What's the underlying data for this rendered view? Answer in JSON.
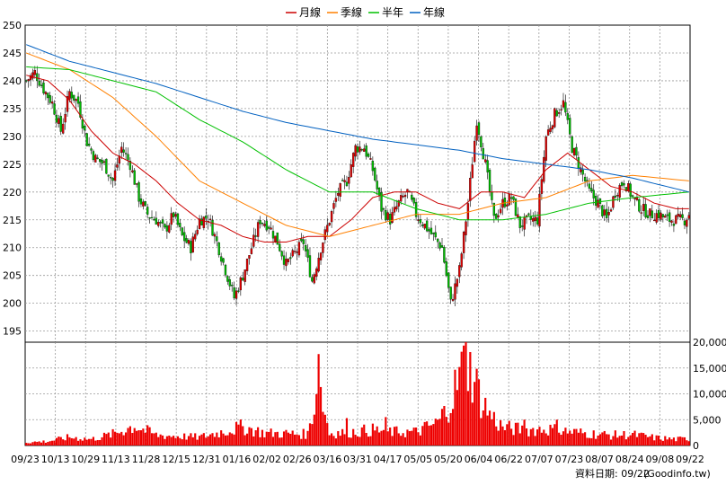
{
  "chart_data": [
    {
      "type": "candlestick",
      "panel": "price",
      "title": "",
      "xlabel": "",
      "ylabel": "",
      "ylim": [
        193,
        250
      ],
      "y_ticks": [
        250,
        245,
        240,
        235,
        230,
        225,
        220,
        215,
        210,
        205,
        200,
        195
      ],
      "x_tick_labels": [
        "09/23",
        "10/13",
        "10/29",
        "11/13",
        "11/28",
        "12/15",
        "12/31",
        "01/16",
        "02/02",
        "02/26",
        "03/16",
        "03/31",
        "04/17",
        "05/05",
        "05/20",
        "06/04",
        "06/22",
        "07/07",
        "07/23",
        "08/07",
        "08/24",
        "09/08",
        "09/22"
      ],
      "grid": true,
      "legend_position": "top-center",
      "legend": [
        {
          "name": "月線",
          "color": "#cc0000"
        },
        {
          "name": "季線",
          "color": "#ff8000"
        },
        {
          "name": "半年",
          "color": "#00c000"
        },
        {
          "name": "年線",
          "color": "#0060c0"
        }
      ],
      "up_color": "#dd0000",
      "down_color": "#00bb00",
      "close_path": [
        [
          0,
          240
        ],
        [
          4,
          241.5
        ],
        [
          8,
          238.5
        ],
        [
          12,
          236
        ],
        [
          16,
          231
        ],
        [
          20,
          238
        ],
        [
          24,
          236
        ],
        [
          28,
          229
        ],
        [
          32,
          226
        ],
        [
          36,
          225
        ],
        [
          40,
          222
        ],
        [
          44,
          228
        ],
        [
          48,
          225
        ],
        [
          52,
          219
        ],
        [
          56,
          216
        ],
        [
          60,
          215
        ],
        [
          64,
          213
        ],
        [
          68,
          216
        ],
        [
          72,
          212
        ],
        [
          76,
          210
        ],
        [
          80,
          215
        ],
        [
          84,
          215.5
        ],
        [
          88,
          211
        ],
        [
          92,
          206
        ],
        [
          96,
          201
        ],
        [
          100,
          205
        ],
        [
          104,
          210
        ],
        [
          108,
          215
        ],
        [
          112,
          214
        ],
        [
          116,
          211
        ],
        [
          120,
          207
        ],
        [
          124,
          209
        ],
        [
          128,
          211
        ],
        [
          132,
          204
        ],
        [
          136,
          210
        ],
        [
          140,
          215
        ],
        [
          144,
          220
        ],
        [
          148,
          222
        ],
        [
          152,
          228
        ],
        [
          156,
          228
        ],
        [
          160,
          224
        ],
        [
          164,
          217
        ],
        [
          168,
          215
        ],
        [
          172,
          218
        ],
        [
          176,
          220
        ],
        [
          180,
          216
        ],
        [
          184,
          214
        ],
        [
          188,
          212
        ],
        [
          192,
          210
        ],
        [
          196,
          200
        ],
        [
          200,
          206
        ],
        [
          204,
          218
        ],
        [
          208,
          233
        ],
        [
          212,
          225
        ],
        [
          216,
          215
        ],
        [
          220,
          218
        ],
        [
          224,
          219
        ],
        [
          228,
          214
        ],
        [
          232,
          215
        ],
        [
          236,
          215
        ],
        [
          240,
          230
        ],
        [
          244,
          234
        ],
        [
          248,
          236
        ],
        [
          252,
          228
        ],
        [
          256,
          224
        ],
        [
          260,
          220
        ],
        [
          264,
          218
        ],
        [
          268,
          215
        ],
        [
          272,
          220
        ],
        [
          276,
          222
        ],
        [
          280,
          219
        ],
        [
          284,
          217
        ],
        [
          288,
          216
        ],
        [
          292,
          216
        ],
        [
          296,
          215
        ],
        [
          300,
          215
        ],
        [
          304,
          215
        ],
        [
          306,
          216
        ]
      ],
      "ma": [
        {
          "name": "月線",
          "values": [
            [
              0,
              241
            ],
            [
              10,
              240
            ],
            [
              20,
              236.5
            ],
            [
              30,
              231
            ],
            [
              40,
              227
            ],
            [
              50,
              225
            ],
            [
              60,
              222
            ],
            [
              70,
              218
            ],
            [
              80,
              215
            ],
            [
              90,
              214
            ],
            [
              100,
              212
            ],
            [
              110,
              211
            ],
            [
              120,
              211
            ],
            [
              130,
              212
            ],
            [
              140,
              212
            ],
            [
              150,
              215
            ],
            [
              160,
              219
            ],
            [
              170,
              220
            ],
            [
              180,
              220
            ],
            [
              190,
              218
            ],
            [
              200,
              217
            ],
            [
              210,
              220
            ],
            [
              220,
              220
            ],
            [
              230,
              219
            ],
            [
              240,
              224
            ],
            [
              250,
              227
            ],
            [
              260,
              224
            ],
            [
              270,
              221
            ],
            [
              280,
              220
            ],
            [
              290,
              218
            ],
            [
              300,
              217
            ],
            [
              306,
              217
            ]
          ]
        },
        {
          "name": "季線",
          "values": [
            [
              0,
              245
            ],
            [
              20,
              242
            ],
            [
              40,
              237
            ],
            [
              60,
              230
            ],
            [
              80,
              222
            ],
            [
              100,
              218
            ],
            [
              120,
              214
            ],
            [
              140,
              212
            ],
            [
              160,
              214
            ],
            [
              180,
              216
            ],
            [
              200,
              216
            ],
            [
              220,
              218
            ],
            [
              240,
              219
            ],
            [
              260,
              222
            ],
            [
              280,
              223
            ],
            [
              306,
              222
            ]
          ]
        },
        {
          "name": "半年",
          "values": [
            [
              0,
              242.5
            ],
            [
              20,
              242
            ],
            [
              40,
              240
            ],
            [
              60,
              238
            ],
            [
              80,
              233
            ],
            [
              100,
              229
            ],
            [
              120,
              224
            ],
            [
              140,
              220
            ],
            [
              160,
              220
            ],
            [
              180,
              217
            ],
            [
              200,
              215
            ],
            [
              220,
              215
            ],
            [
              240,
              216
            ],
            [
              260,
              218
            ],
            [
              280,
              219
            ],
            [
              306,
              220
            ]
          ]
        },
        {
          "name": "年線",
          "values": [
            [
              0,
              246.5
            ],
            [
              20,
              243.5
            ],
            [
              40,
              241.5
            ],
            [
              60,
              239.5
            ],
            [
              80,
              237
            ],
            [
              100,
              234.5
            ],
            [
              120,
              232.5
            ],
            [
              140,
              231
            ],
            [
              160,
              229.5
            ],
            [
              180,
              228.5
            ],
            [
              200,
              227.5
            ],
            [
              220,
              226
            ],
            [
              240,
              225
            ],
            [
              260,
              224
            ],
            [
              280,
              222.5
            ],
            [
              306,
              220
            ]
          ]
        }
      ]
    },
    {
      "type": "bar",
      "panel": "volume",
      "title": "",
      "xlabel": "",
      "ylabel": "",
      "ylim": [
        0,
        20000
      ],
      "y_ticks": [
        0,
        5000,
        10000,
        15000,
        20000
      ],
      "y_tick_labels": [
        "0",
        "5,000",
        "10,000",
        "15,000",
        "20,000"
      ],
      "color": "#ee0000",
      "volume_path": [
        [
          0,
          600
        ],
        [
          10,
          800
        ],
        [
          20,
          1600
        ],
        [
          30,
          1200
        ],
        [
          40,
          2200
        ],
        [
          50,
          3800
        ],
        [
          60,
          2000
        ],
        [
          70,
          1800
        ],
        [
          80,
          1600
        ],
        [
          90,
          2600
        ],
        [
          100,
          3600
        ],
        [
          110,
          2400
        ],
        [
          120,
          2300
        ],
        [
          130,
          2200
        ],
        [
          135,
          12000
        ],
        [
          140,
          2400
        ],
        [
          150,
          2600
        ],
        [
          160,
          3000
        ],
        [
          170,
          2600
        ],
        [
          180,
          2600
        ],
        [
          190,
          4400
        ],
        [
          194,
          7000
        ],
        [
          198,
          11000
        ],
        [
          202,
          15500
        ],
        [
          206,
          14000
        ],
        [
          210,
          9000
        ],
        [
          214,
          6000
        ],
        [
          220,
          3500
        ],
        [
          230,
          3000
        ],
        [
          240,
          3200
        ],
        [
          250,
          2700
        ],
        [
          260,
          2300
        ],
        [
          270,
          2000
        ],
        [
          280,
          2100
        ],
        [
          290,
          1500
        ],
        [
          300,
          1200
        ],
        [
          306,
          1300
        ]
      ],
      "volume_spikes": [
        [
          135,
          17700
        ],
        [
          203,
          20000
        ],
        [
          148,
          5300
        ],
        [
          166,
          5500
        ],
        [
          230,
          5000
        ],
        [
          245,
          5000
        ]
      ]
    }
  ],
  "footer": {
    "label": "資料日期: 09/22",
    "source": "(Goodinfo.tw)"
  }
}
